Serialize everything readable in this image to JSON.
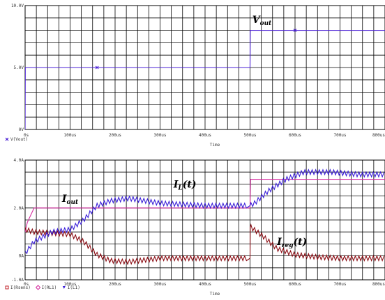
{
  "chart_data": [
    {
      "type": "line",
      "x_unit": "us",
      "xlim": [
        0,
        800
      ],
      "ylim": [
        0,
        10
      ],
      "x_ticks": [
        "0s",
        "100us",
        "200us",
        "300us",
        "400us",
        "500us",
        "600us",
        "700us",
        "800us"
      ],
      "y_ticks": [
        "0V",
        "5.0V",
        "10.0V"
      ],
      "xlabel": "Time",
      "grid": true,
      "legend_position": "bottom-left",
      "series": [
        {
          "name": "V(Vout)",
          "color": "#4a1fd6",
          "marker": "x",
          "x": [
            0,
            0.5,
            1,
            160,
            500,
            500.5,
            505,
            800
          ],
          "y": [
            0,
            5.0,
            5.0,
            5.0,
            5.0,
            8.0,
            8.0,
            8.0
          ]
        }
      ],
      "annotations": [
        {
          "text": "V",
          "sub": "out",
          "x": 505,
          "y": 8.6
        }
      ]
    },
    {
      "type": "line",
      "x_unit": "us",
      "xlim": [
        0,
        800
      ],
      "ylim": [
        -1.0,
        4.0
      ],
      "x_ticks": [
        "0s",
        "100us",
        "200us",
        "300us",
        "400us",
        "500us",
        "600us",
        "700us",
        "800us"
      ],
      "y_ticks": [
        "-1.0A",
        "0A",
        "2.0A",
        "4.0A"
      ],
      "xlabel": "Time",
      "grid": true,
      "legend_position": "bottom-left",
      "series": [
        {
          "name": "I(Rsens)",
          "color": "#d42a9e",
          "marker": "square",
          "x": [
            0,
            5,
            20,
            135,
            150,
            500,
            501,
            800
          ],
          "y": [
            1.0,
            1.4,
            2.0,
            2.0,
            2.0,
            2.0,
            3.2,
            3.2
          ]
        },
        {
          "name": "I(RL1)",
          "color": "#8b0d14",
          "marker": "diamond",
          "x": [
            0,
            20,
            60,
            100,
            130,
            160,
            190,
            230,
            300,
            400,
            495,
            500,
            502,
            530,
            560,
            600,
            650,
            700,
            800
          ],
          "y": [
            1.1,
            1.0,
            0.95,
            0.9,
            0.6,
            0.05,
            -0.2,
            -0.25,
            -0.1,
            -0.1,
            -0.1,
            -0.1,
            1.2,
            0.8,
            0.3,
            0.05,
            -0.05,
            -0.1,
            -0.1
          ],
          "ripple": 0.2,
          "ripple_period_us": 8
        },
        {
          "name": "I(L1)",
          "color": "#3a1fd8",
          "marker": "triangle",
          "x": [
            0,
            20,
            60,
            100,
            130,
            160,
            190,
            230,
            300,
            400,
            495,
            500,
            510,
            540,
            580,
            620,
            680,
            740,
            800
          ],
          "y": [
            0.1,
            0.6,
            1.0,
            1.1,
            1.5,
            2.1,
            2.3,
            2.4,
            2.2,
            2.1,
            2.1,
            2.1,
            2.2,
            2.7,
            3.2,
            3.5,
            3.5,
            3.4,
            3.4
          ],
          "ripple": 0.2,
          "ripple_period_us": 8
        }
      ],
      "annotations": [
        {
          "text": "I",
          "sub": "out",
          "x": 82,
          "y": 2.25
        },
        {
          "text": "I",
          "sub": "L",
          "suffix": "(t)",
          "x": 330,
          "y": 2.85
        },
        {
          "text": "I",
          "sub": "reg",
          "suffix": "(t)",
          "x": 560,
          "y": 0.45
        }
      ]
    }
  ]
}
